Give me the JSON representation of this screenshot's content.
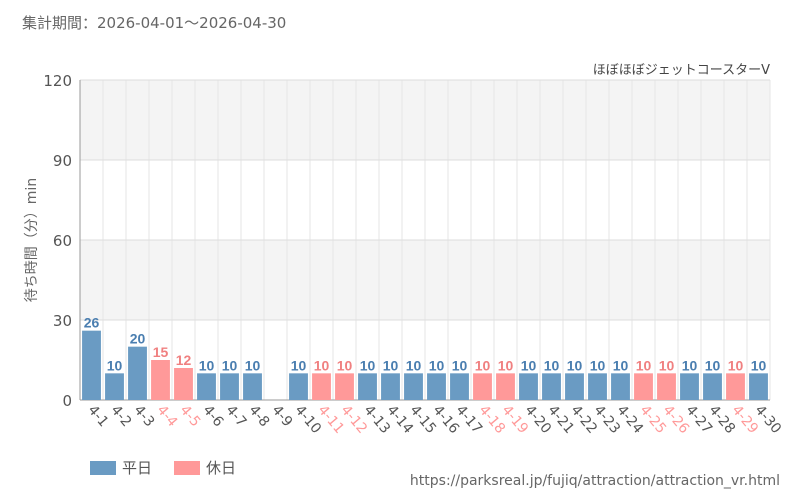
{
  "header": {
    "period": "集計期間：2026-04-01～2026-04-30"
  },
  "footer": {
    "source": "https://parksreal.jp/fujiq/attraction/attraction_vr.html"
  },
  "colors": {
    "weekday": "#6a9bc3",
    "holiday": "#ff9999",
    "weekday_text": "#4a7eb0",
    "holiday_text": "#f08080"
  },
  "chart_data": {
    "type": "bar",
    "title": "ほぼほぼジェットコースターV",
    "ylabel": "待ち時間（分）min",
    "xlabel": "",
    "ylim": [
      0,
      120
    ],
    "yticks": [
      0,
      30,
      60,
      90,
      120
    ],
    "grid": true,
    "categories": [
      "4-1",
      "4-2",
      "4-3",
      "4-4",
      "4-5",
      "4-6",
      "4-7",
      "4-8",
      "4-9",
      "4-10",
      "4-11",
      "4-12",
      "4-13",
      "4-14",
      "4-15",
      "4-16",
      "4-17",
      "4-18",
      "4-19",
      "4-20",
      "4-21",
      "4-22",
      "4-23",
      "4-24",
      "4-25",
      "4-26",
      "4-27",
      "4-28",
      "4-29",
      "4-30"
    ],
    "values": [
      26,
      10,
      20,
      15,
      12,
      10,
      10,
      10,
      null,
      10,
      10,
      10,
      10,
      10,
      10,
      10,
      10,
      10,
      10,
      10,
      10,
      10,
      10,
      10,
      10,
      10,
      10,
      10,
      10,
      10
    ],
    "holiday": [
      false,
      false,
      false,
      true,
      true,
      false,
      false,
      false,
      false,
      false,
      true,
      true,
      false,
      false,
      false,
      false,
      false,
      true,
      true,
      false,
      false,
      false,
      false,
      false,
      true,
      true,
      false,
      false,
      true,
      false
    ],
    "legend": [
      {
        "label": "平日",
        "key": "weekday"
      },
      {
        "label": "休日",
        "key": "holiday"
      }
    ],
    "legend_position": "bottom-left"
  }
}
